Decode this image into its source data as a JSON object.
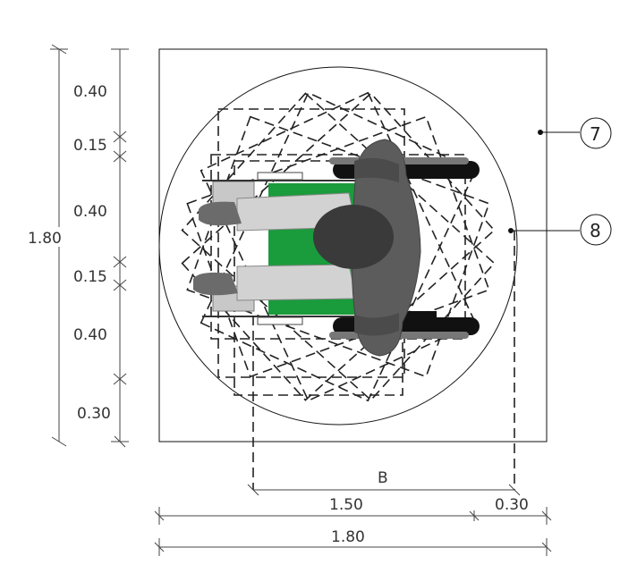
{
  "diagram": {
    "vertical_dims": [
      "0.40",
      "0.15",
      "0.40",
      "0.15",
      "0.40",
      "0.30"
    ],
    "vertical_total": "1.80",
    "horizontal_dims": [
      "1.50",
      "0.30"
    ],
    "horizontal_total": "1.80",
    "label_b": "B",
    "callouts": [
      "7",
      "8"
    ],
    "colors": {
      "seat_green": "#1a9b3c",
      "figure_dark": "#555555",
      "clothing_light": "#cfcfcf",
      "wheel_black": "#111111"
    }
  }
}
